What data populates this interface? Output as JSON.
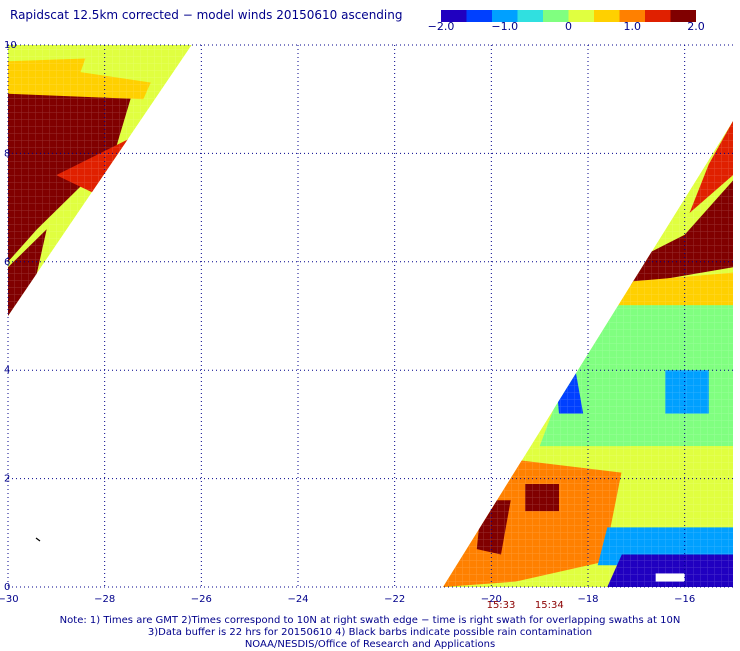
{
  "title": "Rapidscat 12.5km corrected − model winds 20150610 ascending",
  "colorbar": {
    "min": -2.0,
    "max": 2.0,
    "labels": [
      "−2.0",
      "−1.0",
      "0",
      "1.0",
      "2.0"
    ],
    "label_values": [
      -2.0,
      -1.0,
      0,
      1.0,
      2.0
    ],
    "colors": [
      "#2000c0",
      "#0040ff",
      "#00a0ff",
      "#30e0e0",
      "#80ff80",
      "#e0ff40",
      "#ffd000",
      "#ff8000",
      "#e02000",
      "#800000"
    ]
  },
  "chart_data": {
    "type": "heatmap",
    "variable": "corrected − model wind speed difference",
    "xlim": [
      -30,
      -15
    ],
    "ylim": [
      0,
      10
    ],
    "x_ticks": [
      -30,
      -28,
      -26,
      -24,
      -22,
      -20,
      -18,
      -16
    ],
    "x_tick_labels": [
      "−30",
      "−28",
      "−26",
      "−24",
      "−22",
      "−20",
      "−18",
      "−16"
    ],
    "y_ticks": [
      0,
      2,
      4,
      6,
      8,
      10
    ],
    "y_tick_labels": [
      "0",
      "2",
      "4",
      "6",
      "8",
      "10"
    ],
    "grid": true,
    "swaths": [
      {
        "name": "left",
        "polygon": [
          [
            -30,
            10
          ],
          [
            -26.2,
            10
          ],
          [
            -30,
            5
          ]
        ],
        "regions": [
          {
            "polygon": [
              [
                -30,
                9.2
              ],
              [
                -27.4,
                9.2
              ],
              [
                -27.8,
                8.0
              ],
              [
                -29.4,
                6.6
              ],
              [
                -30,
                6.0
              ]
            ],
            "value": 2.0
          },
          {
            "polygon": [
              [
                -30,
                5.9
              ],
              [
                -29.2,
                6.6
              ],
              [
                -29.6,
                5.0
              ],
              [
                -30,
                5.0
              ]
            ],
            "value": 1.6
          },
          {
            "polygon": [
              [
                -29.0,
                7.6
              ],
              [
                -27.2,
                8.4
              ],
              [
                -27.6,
                7.0
              ]
            ],
            "value": 1.2
          },
          {
            "polygon": [
              [
                -30,
                9.7
              ],
              [
                -26.8,
                9.8
              ],
              [
                -27.2,
                9.0
              ],
              [
                -30,
                9.1
              ]
            ],
            "value": 0.6
          },
          {
            "polygon": [
              [
                -28.3,
                10
              ],
              [
                -26.2,
                10
              ],
              [
                -27.0,
                9.3
              ],
              [
                -28.5,
                9.5
              ]
            ],
            "value": 0.1
          }
        ]
      },
      {
        "name": "right",
        "polygon": [
          [
            -15,
            8.6
          ],
          [
            -15,
            0
          ],
          [
            -21.0,
            0
          ]
        ],
        "regions": [
          {
            "polygon": [
              [
                -16.0,
                6.5
              ],
              [
                -15,
                7.5
              ],
              [
                -15,
                5.9
              ],
              [
                -17.6,
                5.5
              ],
              [
                -17.1,
                6.0
              ]
            ],
            "value": 2.0
          },
          {
            "polygon": [
              [
                -15,
                8.6
              ],
              [
                -15,
                7.6
              ],
              [
                -15.9,
                6.9
              ],
              [
                -15.5,
                7.8
              ]
            ],
            "value": 1.4
          },
          {
            "polygon": [
              [
                -17.6,
                5.6
              ],
              [
                -15,
                5.8
              ],
              [
                -15,
                5.2
              ],
              [
                -17.8,
                5.2
              ]
            ],
            "value": 0.6
          },
          {
            "polygon": [
              [
                -17.9,
                5.2
              ],
              [
                -15,
                5.2
              ],
              [
                -15,
                2.6
              ],
              [
                -19.0,
                2.6
              ]
            ],
            "value": -0.3
          },
          {
            "polygon": [
              [
                -18.7,
                4.2
              ],
              [
                -18.3,
                4.2
              ],
              [
                -18.1,
                3.2
              ],
              [
                -18.6,
                3.2
              ]
            ],
            "value": -1.3
          },
          {
            "polygon": [
              [
                -16.4,
                4.0
              ],
              [
                -15.5,
                4.0
              ],
              [
                -15.5,
                3.2
              ],
              [
                -16.4,
                3.2
              ]
            ],
            "value": -1.0
          },
          {
            "polygon": [
              [
                -20.0,
                2.4
              ],
              [
                -17.2,
                2.1
              ],
              [
                -17.5,
                0.5
              ],
              [
                -19.5,
                0.1
              ],
              [
                -21.0,
                0
              ],
              [
                -20.3,
                1.3
              ]
            ],
            "value": 1.1
          },
          {
            "polygon": [
              [
                -19.3,
                1.9
              ],
              [
                -18.6,
                1.9
              ],
              [
                -18.6,
                1.4
              ],
              [
                -19.3,
                1.4
              ]
            ],
            "value": 1.8
          },
          {
            "polygon": [
              [
                -20.2,
                1.6
              ],
              [
                -19.6,
                1.6
              ],
              [
                -19.8,
                0.6
              ],
              [
                -20.3,
                0.7
              ]
            ],
            "value": 1.6
          },
          {
            "polygon": [
              [
                -17.2,
                2.6
              ],
              [
                -15,
                2.6
              ],
              [
                -15,
                1.0
              ],
              [
                -17.6,
                0.8
              ]
            ],
            "value": 0.0
          },
          {
            "polygon": [
              [
                -17.6,
                1.1
              ],
              [
                -15,
                1.1
              ],
              [
                -15,
                0.4
              ],
              [
                -17.8,
                0.4
              ]
            ],
            "value": -1.2
          },
          {
            "polygon": [
              [
                -17.3,
                0.6
              ],
              [
                -15,
                0.6
              ],
              [
                -15,
                0
              ],
              [
                -17.6,
                0
              ]
            ],
            "value": -1.8
          }
        ]
      }
    ],
    "time_labels": [
      {
        "text": "15:33",
        "x": -19.8
      },
      {
        "text": "15:34",
        "x": -18.8
      }
    ],
    "missing_data": [
      {
        "x": [
          -16.6,
          -16.0
        ],
        "y": [
          0.1,
          0.25
        ]
      }
    ]
  },
  "notes": [
    "Note: 1) Times are GMT 2)Times correspond to 10N at right swath edge − time is right swath for overlapping swaths at 10N",
    "3)Data buffer is 22 hrs for 20150610 4) Black barbs indicate possible rain contamination",
    "NOAA/NESDIS/Office of Research and Applications"
  ]
}
